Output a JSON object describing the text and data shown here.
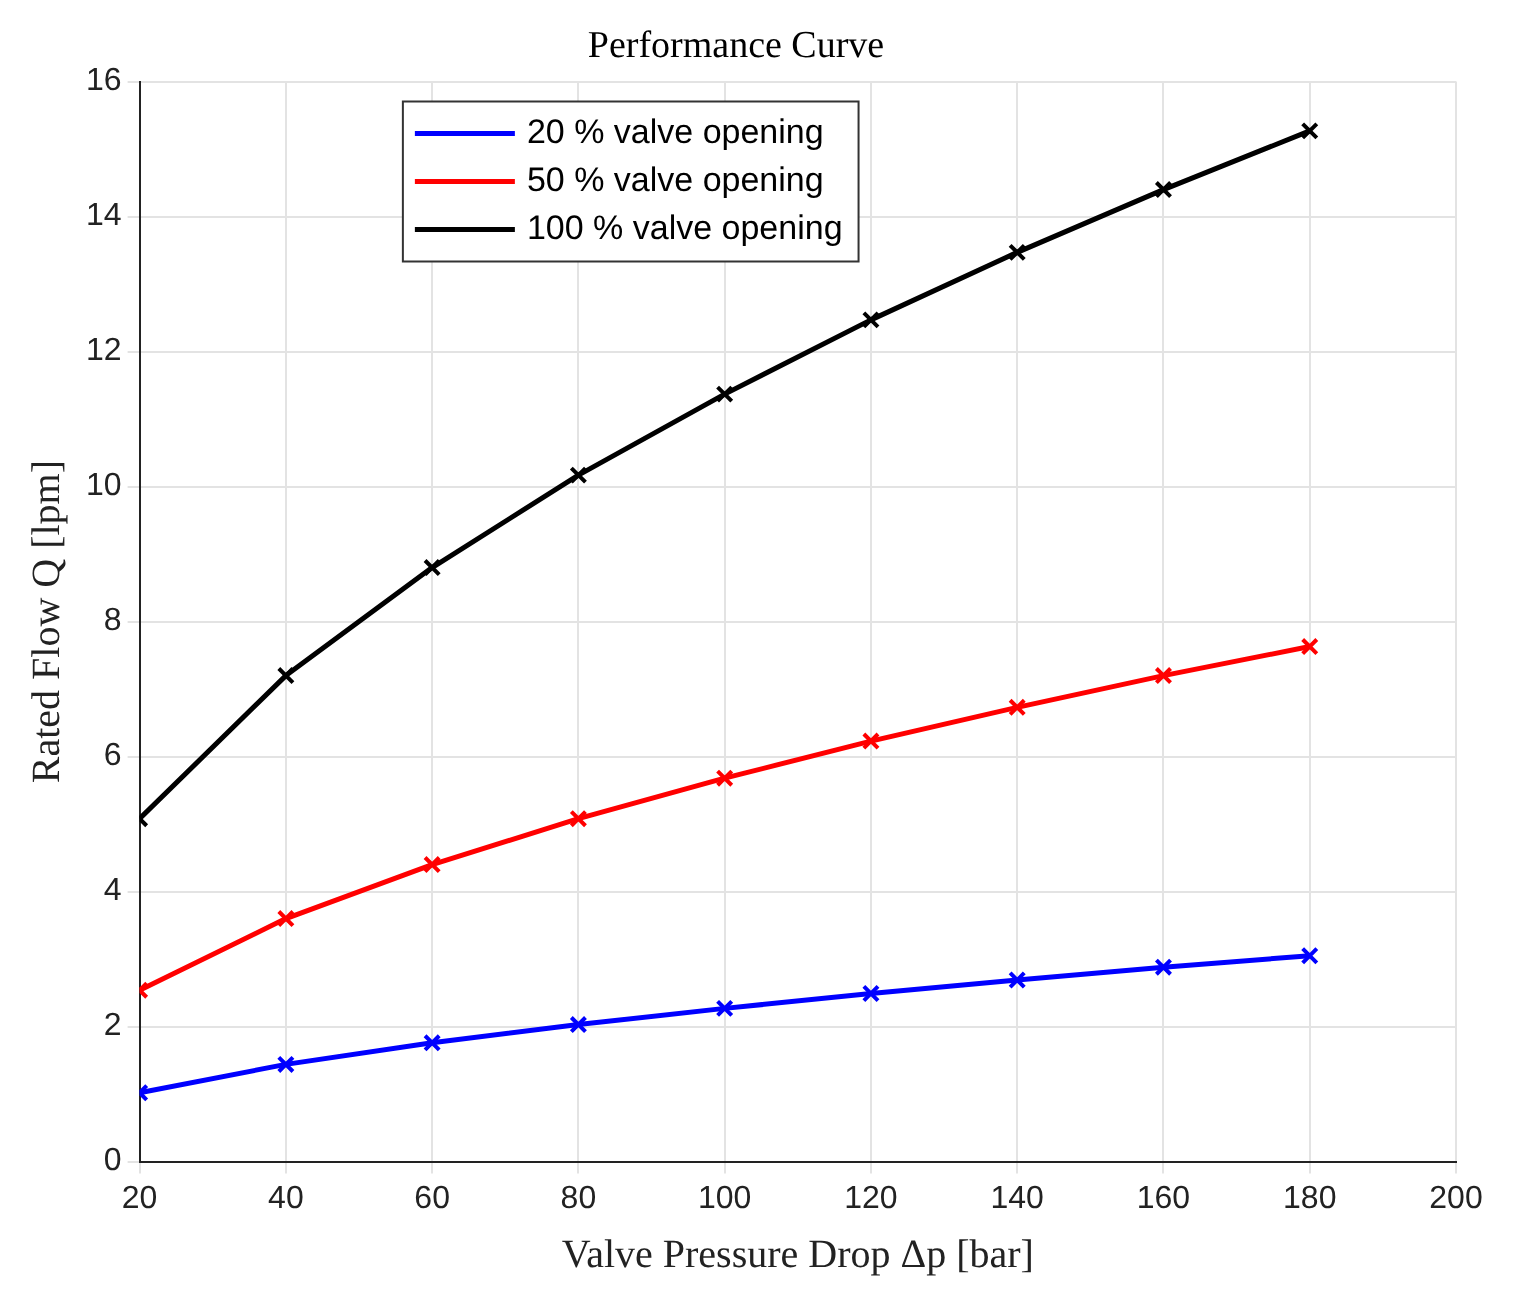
{
  "chart_data": {
    "type": "line",
    "title": "Performance Curve",
    "xlabel": "Valve Pressure Drop Δp [bar]",
    "ylabel": "Rated Flow Q [lpm]",
    "x": [
      20,
      40,
      60,
      80,
      100,
      120,
      140,
      160,
      180
    ],
    "series": [
      {
        "name": "20 % valve opening",
        "color": "#0000ff",
        "values": [
          1.02,
          1.44,
          1.76,
          2.03,
          2.27,
          2.49,
          2.69,
          2.88,
          3.05
        ]
      },
      {
        "name": "50 % valve opening",
        "color": "#ff0000",
        "values": [
          2.54,
          3.6,
          4.4,
          5.08,
          5.68,
          6.23,
          6.73,
          7.2,
          7.63
        ]
      },
      {
        "name": "100 % valve opening",
        "color": "#000000",
        "values": [
          5.08,
          7.2,
          8.8,
          10.17,
          11.37,
          12.47,
          13.47,
          14.4,
          15.27
        ]
      }
    ],
    "xlim": [
      20,
      200
    ],
    "xticks": [
      20,
      40,
      60,
      80,
      100,
      120,
      140,
      160,
      180,
      200
    ],
    "ylim": [
      0,
      16
    ],
    "yticks": [
      0,
      2,
      4,
      6,
      8,
      10,
      12,
      14,
      16
    ],
    "grid": true,
    "legend": "top left",
    "marker": "cross",
    "line_style": "solid"
  }
}
